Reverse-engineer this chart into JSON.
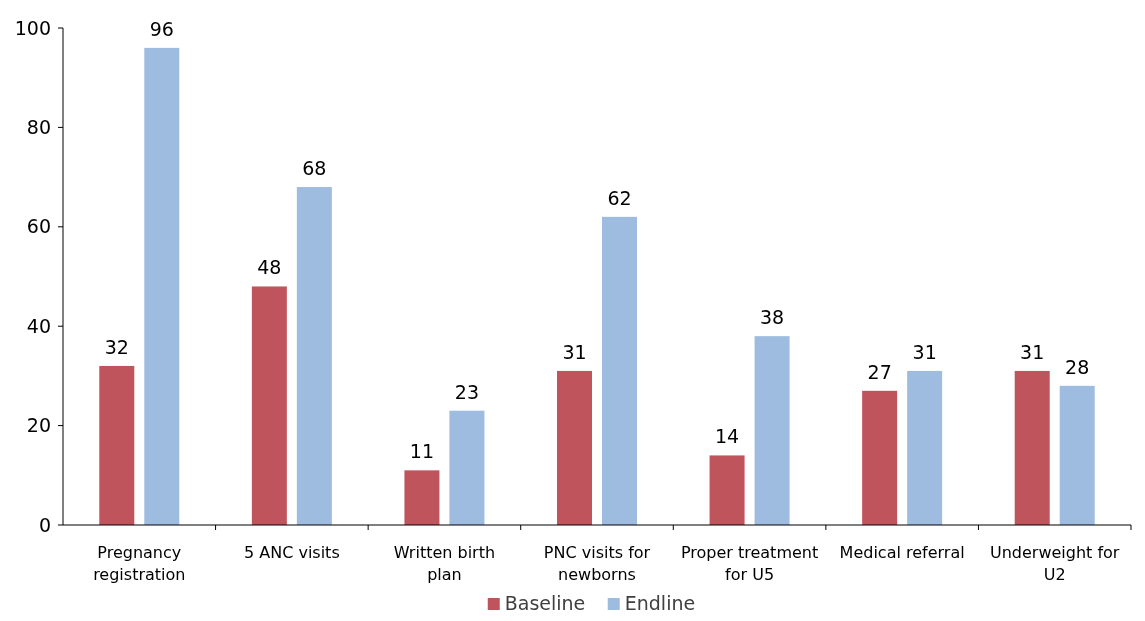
{
  "chart_data": {
    "type": "bar",
    "categories": [
      "Pregnancy registration",
      "5 ANC visits",
      "Written birth plan",
      "PNC visits for newborns",
      "Proper treatment for U5",
      "Medical referral",
      "Underweight for U2"
    ],
    "series": [
      {
        "name": "Baseline",
        "color": "#c0545c",
        "values": [
          32,
          48,
          11,
          31,
          14,
          27,
          31
        ]
      },
      {
        "name": "Endline",
        "color": "#9ebce0",
        "values": [
          96,
          68,
          23,
          62,
          38,
          31,
          28
        ]
      }
    ],
    "ylim": [
      0,
      100
    ],
    "yticks": [
      0,
      20,
      40,
      60,
      80,
      100
    ],
    "data_labels": true,
    "legend": "bottom",
    "grid": false
  }
}
